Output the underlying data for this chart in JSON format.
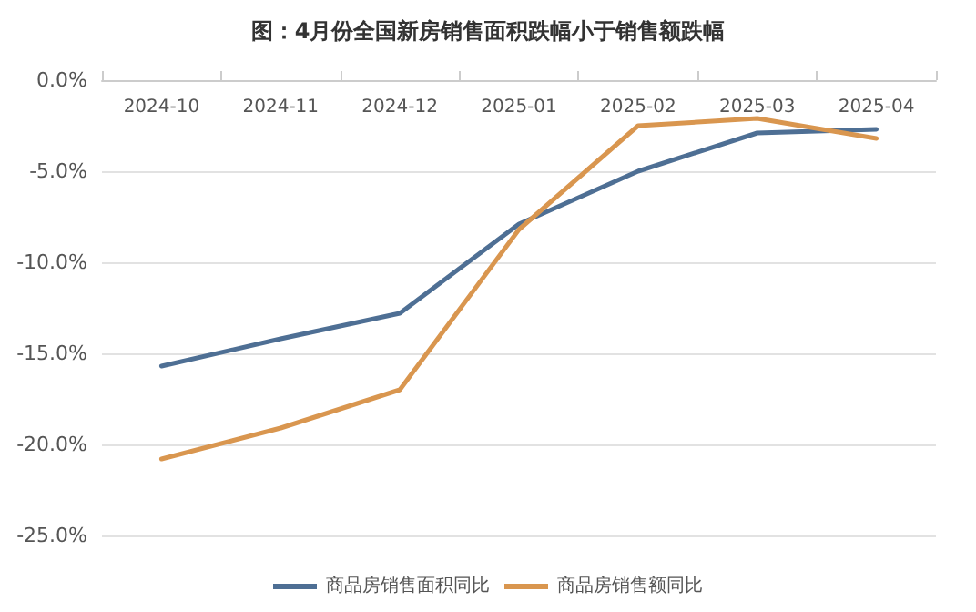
{
  "chart_data": {
    "type": "line",
    "title": "图：4月份全国新房销售面积跌幅小于销售额跌幅",
    "categories": [
      "2024-10",
      "2024-11",
      "2024-12",
      "2025-01",
      "2025-02",
      "2025-03",
      "2025-04"
    ],
    "series": [
      {
        "name": "商品房销售面积同比",
        "color": "#4e6f94",
        "values": [
          -15.7,
          -14.2,
          -12.8,
          -7.9,
          -5.0,
          -2.9,
          -2.7
        ]
      },
      {
        "name": "商品房销售额同比",
        "color": "#d9964f",
        "values": [
          -20.8,
          -19.1,
          -17.0,
          -8.2,
          -2.5,
          -2.1,
          -3.2
        ]
      }
    ],
    "ylim": [
      -25,
      0
    ],
    "yticks": [
      {
        "value": -25,
        "label": "-25.0%"
      },
      {
        "value": -20,
        "label": "-20.0%"
      },
      {
        "value": -15,
        "label": "-15.0%"
      },
      {
        "value": -10,
        "label": "-10.0%"
      },
      {
        "value": -5,
        "label": "-5.0%"
      },
      {
        "value": 0,
        "label": "0.0%"
      }
    ],
    "grid": "y",
    "legend": "bottom",
    "marker": "none",
    "line_style": "solid"
  }
}
